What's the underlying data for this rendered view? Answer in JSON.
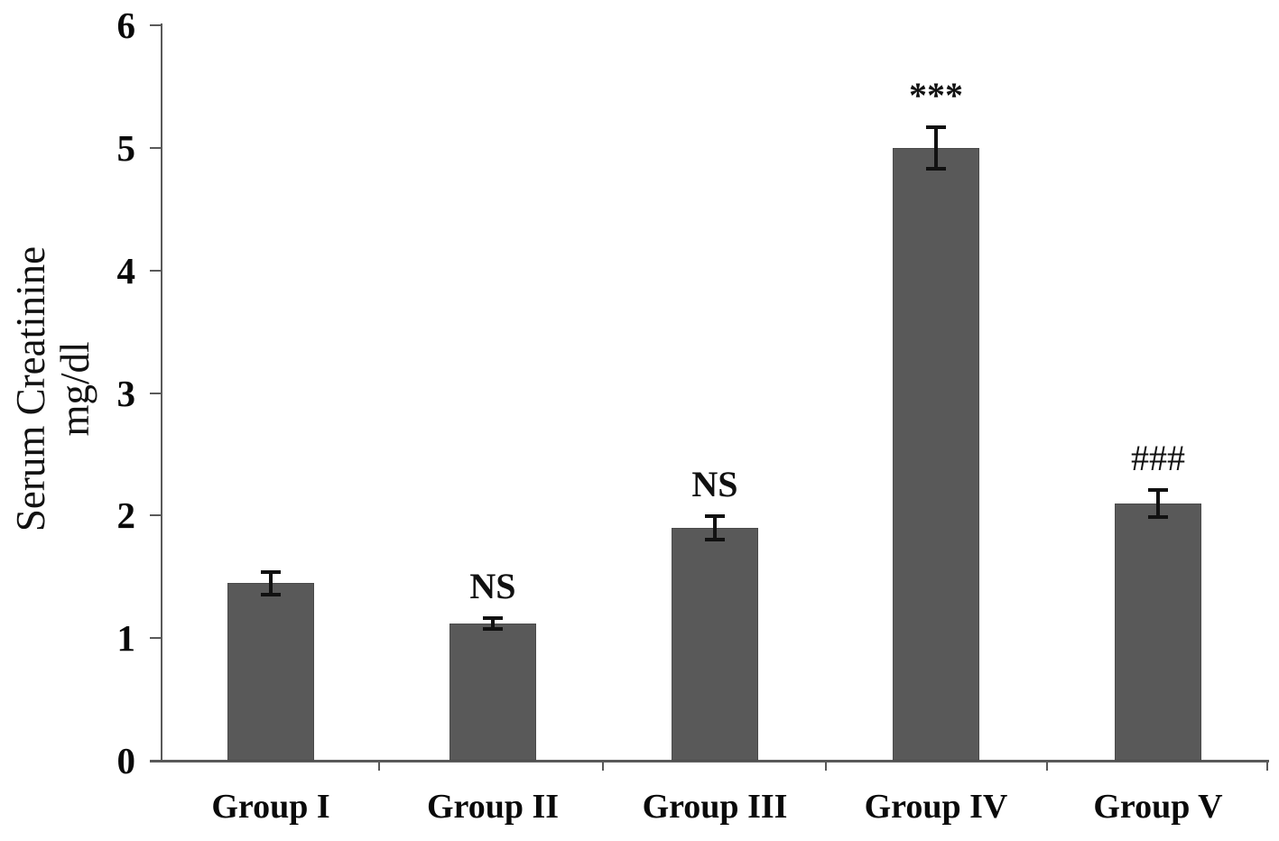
{
  "chart_data": {
    "type": "bar",
    "categories": [
      "Group I",
      "Group II",
      "Group III",
      "Group IV",
      "Group V"
    ],
    "values": [
      1.45,
      1.12,
      1.9,
      5.0,
      2.1
    ],
    "errors": [
      0.1,
      0.05,
      0.1,
      0.18,
      0.12
    ],
    "annotations": [
      "",
      "NS",
      "NS",
      "***",
      "###"
    ],
    "title": "",
    "xlabel": "",
    "ylabel_line1": "Serum Creatinine",
    "ylabel_line2": "mg/dl",
    "ylim": [
      0,
      6
    ],
    "yticks": [
      0,
      1,
      2,
      3,
      4,
      5,
      6
    ],
    "grid": false,
    "legend": "none",
    "bar_color": "#595959",
    "axis_color": "#595959",
    "error_bar_color": "#111111",
    "text_color": "#0a0a0a"
  }
}
